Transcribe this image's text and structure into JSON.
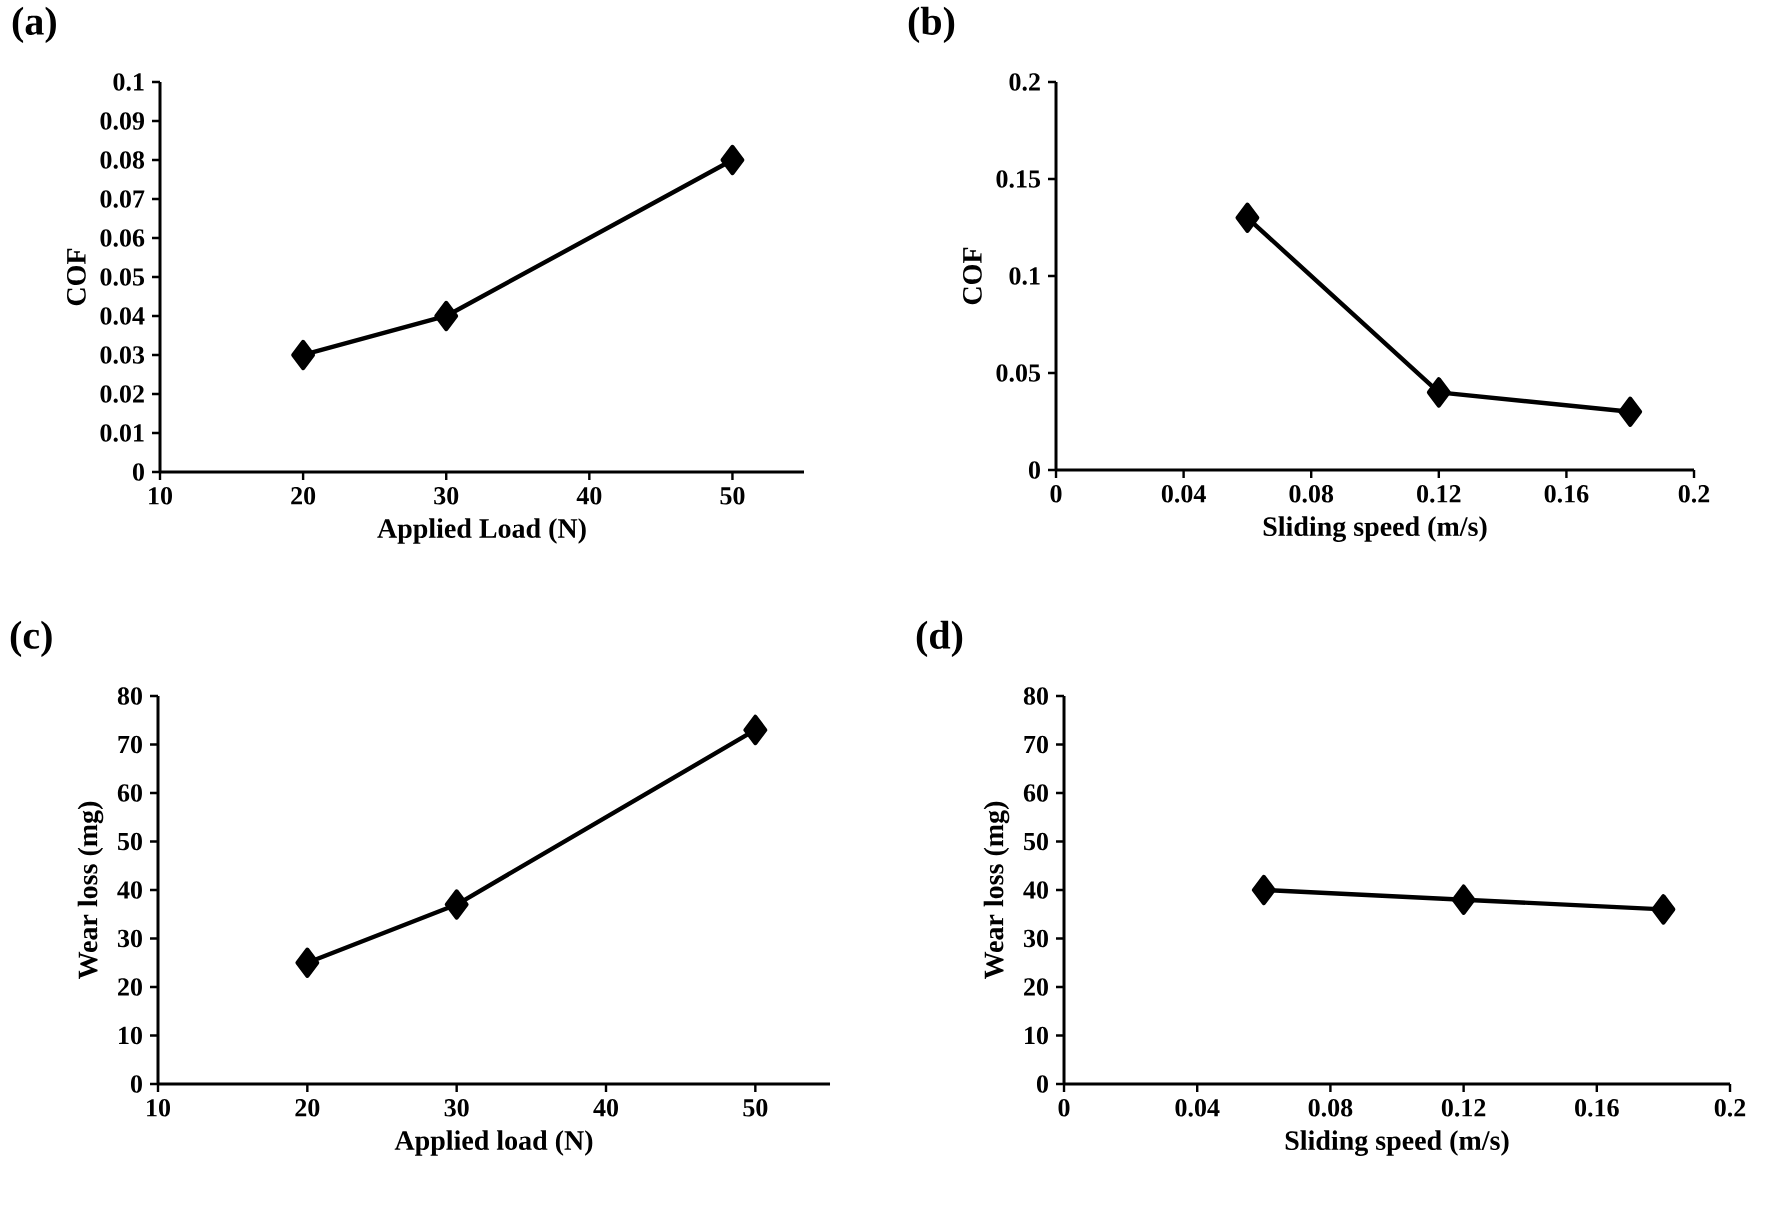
{
  "chart_data": [
    {
      "type": "line",
      "title": "(a)",
      "xlabel": "Applied Load (N)",
      "ylabel": "COF",
      "x": [
        20,
        30,
        50
      ],
      "xlim": [
        10,
        55
      ],
      "xticks": [
        10,
        20,
        30,
        40,
        50
      ],
      "ylim": [
        0,
        0.1
      ],
      "yticks": [
        0,
        0.01,
        0.02,
        0.03,
        0.04,
        0.05,
        0.06,
        0.07,
        0.08,
        0.09,
        0.1
      ],
      "marker": "diamond",
      "line_style": "solid",
      "series": [
        {
          "color": "#000000",
          "values": [
            0.03,
            0.04,
            0.08
          ]
        }
      ]
    },
    {
      "type": "line",
      "title": "(b)",
      "xlabel": "Sliding speed (m/s)",
      "ylabel": "COF",
      "x": [
        0.06,
        0.12,
        0.18
      ],
      "xlim": [
        0,
        0.2
      ],
      "xticks": [
        0,
        0.04,
        0.08,
        0.12,
        0.16,
        0.2
      ],
      "ylim": [
        0,
        0.2
      ],
      "yticks": [
        0,
        0.05,
        0.1,
        0.15,
        0.2
      ],
      "marker": "diamond",
      "line_style": "solid",
      "series": [
        {
          "color": "#000000",
          "values": [
            0.13,
            0.04,
            0.03
          ]
        }
      ]
    },
    {
      "type": "line",
      "title": "(c)",
      "xlabel": "Applied load (N)",
      "ylabel": "Wear loss (mg)",
      "x": [
        20,
        30,
        50
      ],
      "xlim": [
        10,
        55
      ],
      "xticks": [
        10,
        20,
        30,
        40,
        50
      ],
      "ylim": [
        0,
        80
      ],
      "yticks": [
        0,
        10,
        20,
        30,
        40,
        50,
        60,
        70,
        80
      ],
      "marker": "diamond",
      "line_style": "solid",
      "series": [
        {
          "color": "#000000",
          "values": [
            25,
            37,
            73
          ]
        }
      ]
    },
    {
      "type": "line",
      "title": "(d)",
      "xlabel": "Sliding speed (m/s)",
      "ylabel": "Wear loss (mg)",
      "x": [
        0.06,
        0.12,
        0.18
      ],
      "xlim": [
        0,
        0.2
      ],
      "xticks": [
        0,
        0.04,
        0.08,
        0.12,
        0.16,
        0.2
      ],
      "ylim": [
        0,
        80
      ],
      "yticks": [
        0,
        10,
        20,
        30,
        40,
        50,
        60,
        70,
        80
      ],
      "marker": "diamond",
      "line_style": "solid",
      "series": [
        {
          "color": "#000000",
          "values": [
            40,
            38,
            36
          ]
        }
      ]
    }
  ]
}
